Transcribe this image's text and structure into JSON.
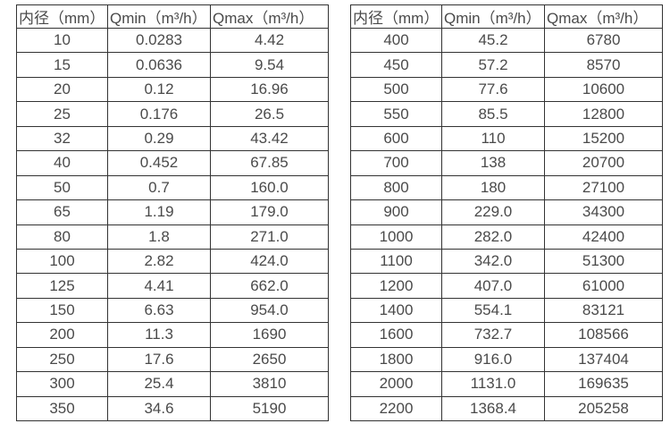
{
  "colors": {
    "background": "#ffffff",
    "text": "#4a4a4a",
    "border": "#333333"
  },
  "tables": [
    {
      "name": "flow-spec-table-left",
      "headers": [
        "内径（mm）",
        "Qmin（m³/h）",
        "Qmax（m³/h）"
      ],
      "rows": [
        [
          "10",
          "0.0283",
          "4.42"
        ],
        [
          "15",
          "0.0636",
          "9.54"
        ],
        [
          "20",
          "0.12",
          "16.96"
        ],
        [
          "25",
          "0.176",
          "26.5"
        ],
        [
          "32",
          "0.29",
          "43.42"
        ],
        [
          "40",
          "0.452",
          "67.85"
        ],
        [
          "50",
          "0.7",
          "160.0"
        ],
        [
          "65",
          "1.19",
          "179.0"
        ],
        [
          "80",
          "1.8",
          "271.0"
        ],
        [
          "100",
          "2.82",
          "424.0"
        ],
        [
          "125",
          "4.41",
          "662.0"
        ],
        [
          "150",
          "6.63",
          "954.0"
        ],
        [
          "200",
          "11.3",
          "1690"
        ],
        [
          "250",
          "17.6",
          "2650"
        ],
        [
          "300",
          "25.4",
          "3810"
        ],
        [
          "350",
          "34.6",
          "5190"
        ]
      ]
    },
    {
      "name": "flow-spec-table-right",
      "headers": [
        "内径（mm）",
        "Qmin（m³/h）",
        "Qmax（m³/h）"
      ],
      "rows": [
        [
          "400",
          "45.2",
          "6780"
        ],
        [
          "450",
          "57.2",
          "8570"
        ],
        [
          "500",
          "77.6",
          "10600"
        ],
        [
          "550",
          "85.5",
          "12800"
        ],
        [
          "600",
          "110",
          "15200"
        ],
        [
          "700",
          "138",
          "20700"
        ],
        [
          "800",
          "180",
          "27100"
        ],
        [
          "900",
          "229.0",
          "34300"
        ],
        [
          "1000",
          "282.0",
          "42400"
        ],
        [
          "1100",
          "342.0",
          "51300"
        ],
        [
          "1200",
          "407.0",
          "61000"
        ],
        [
          "1400",
          "554.1",
          "83121"
        ],
        [
          "1600",
          "732.7",
          "108566"
        ],
        [
          "1800",
          "916.0",
          "137404"
        ],
        [
          "2000",
          "1131.0",
          "169635"
        ],
        [
          "2200",
          "1368.4",
          "205258"
        ]
      ]
    }
  ]
}
